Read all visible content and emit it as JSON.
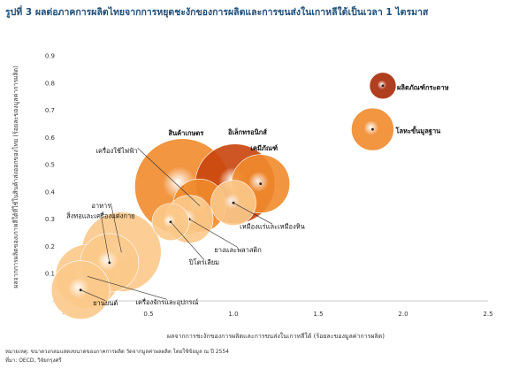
{
  "title": "รูปที่ 3 ผลต่อภาคการผลิตไทยจากการหยุดชะงักของการผลิตและการขนส่งในเกาหลีใต้เป็นเวลา 1 ไตรมาส",
  "notes": {
    "line1": "หมายเหตุ: ขนาดวงกลมแสดงขนาดของภาคการผลิต วัดจากมูลค่าผลผลิต โดยใช้ข้อมูล ณ ปี 2554",
    "line2": "ที่มา: OECD, วิจัยกรุงศรี"
  },
  "chart_data": {
    "type": "scatter",
    "subtype": "bubble",
    "xlabel": "ผลจากการชะงักของการผลิตและการขนส่งในเกาหลีใต้ (ร้อยละของมูลค่าการผลิต)",
    "ylabel": "ผลจากการผลิตของเกาหลีใต้ที่ใช้ในสินค้าส่งออกของไทย (ร้อยละของมูลค่าการผลิต)",
    "xlim": [
      0,
      2.5
    ],
    "ylim": [
      0,
      0.9
    ],
    "xticks": [
      "-",
      "0.5",
      "1.0",
      "1.5",
      "2.0",
      "2.5"
    ],
    "yticks": [
      "-",
      "0.1",
      "0.2",
      "0.3",
      "0.4",
      "0.5",
      "0.6",
      "0.7",
      "0.8",
      "0.9"
    ],
    "grid": false,
    "legend": "none",
    "colors": {
      "light": "#fbc98a",
      "medium": "#f08a2c",
      "dark": "#c8440c",
      "darkest": "#a82a08",
      "center": "#ffffff"
    },
    "points": [
      {
        "name": "ผลิตภัณฑ์กระดาษ",
        "x": 1.88,
        "y": 0.79,
        "size": 10,
        "shade": "darkest",
        "bold": true
      },
      {
        "name": "โลหะขั้นมูลฐาน",
        "x": 1.82,
        "y": 0.63,
        "size": 16,
        "shade": "medium",
        "bold": true
      },
      {
        "name": "สินค้าเกษตร",
        "x": 0.7,
        "y": 0.42,
        "size": 36,
        "shade": "medium",
        "bold": true
      },
      {
        "name": "อิเล็กทรอนิกส์",
        "x": 1.01,
        "y": 0.43,
        "size": 30,
        "shade": "dark",
        "bold": true
      },
      {
        "name": "เคมีภัณฑ์",
        "x": 1.16,
        "y": 0.43,
        "size": 22,
        "shade": "medium",
        "bold": true
      },
      {
        "name": "เครื่องใช้ไฟฟ้า",
        "x": 0.8,
        "y": 0.35,
        "size": 20,
        "shade": "medium",
        "bold": false
      },
      {
        "name": "เหมืองแร่และเหมืองหิน",
        "x": 1.0,
        "y": 0.36,
        "size": 17,
        "shade": "light",
        "bold": false
      },
      {
        "name": "ยางและพลาสติก",
        "x": 0.74,
        "y": 0.3,
        "size": 18,
        "shade": "light",
        "bold": false
      },
      {
        "name": "ปิโตรเลียม",
        "x": 0.63,
        "y": 0.29,
        "size": 14,
        "shade": "light",
        "bold": false
      },
      {
        "name": "อาหาร",
        "x": 0.34,
        "y": 0.18,
        "size": 30,
        "shade": "light",
        "bold": false
      },
      {
        "name": "สิ่งทอและเครื่องแต่งกาย",
        "x": 0.27,
        "y": 0.14,
        "size": 22,
        "shade": "light",
        "bold": false
      },
      {
        "name": "เครื่องจักรและอุปกรณ์",
        "x": 0.14,
        "y": 0.09,
        "size": 24,
        "shade": "light",
        "bold": false
      },
      {
        "name": "ยานยนต์",
        "x": 0.1,
        "y": 0.04,
        "size": 22,
        "shade": "light",
        "bold": false
      }
    ]
  }
}
